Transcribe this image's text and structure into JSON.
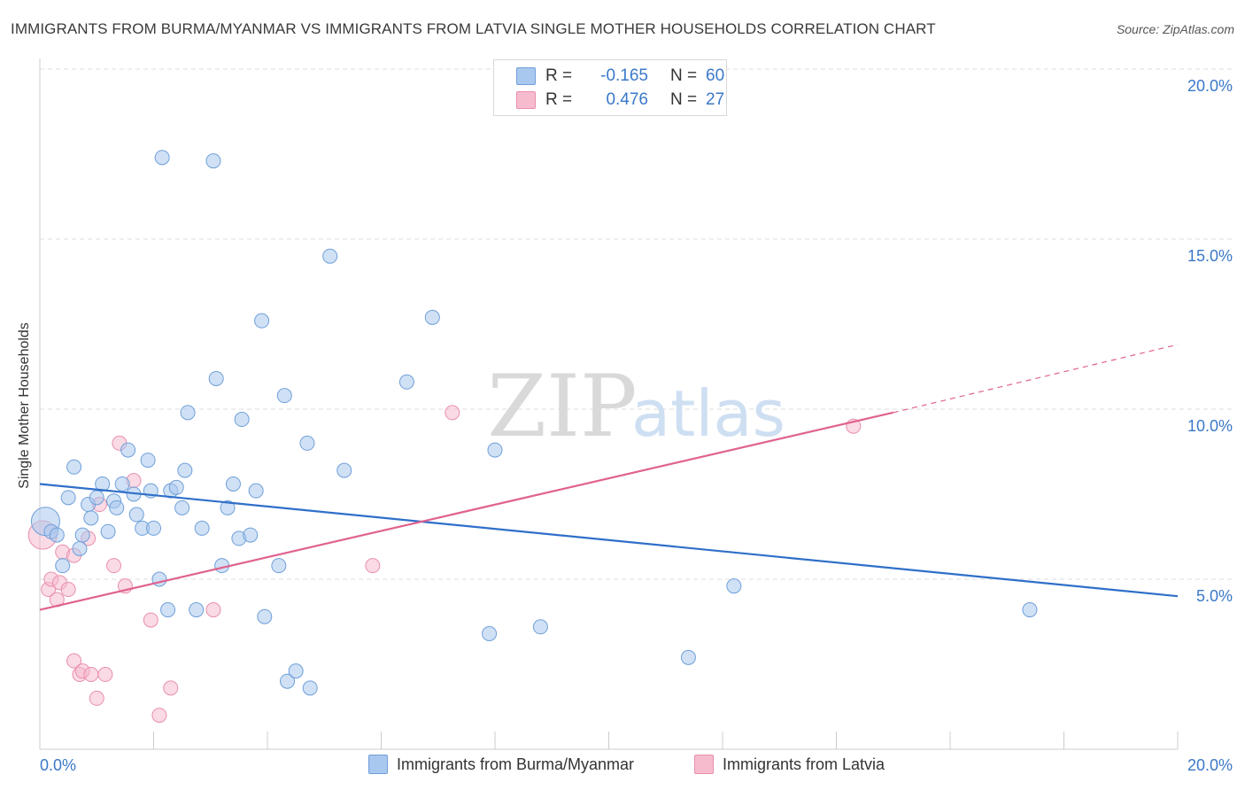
{
  "title": "IMMIGRANTS FROM BURMA/MYANMAR VS IMMIGRANTS FROM LATVIA SINGLE MOTHER HOUSEHOLDS CORRELATION CHART",
  "source": "Source: ZipAtlas.com",
  "watermark": {
    "zip": "ZIP",
    "atlas": "atlas"
  },
  "colors": {
    "burma_fill": "#a9c8ef",
    "burma_stroke": "#6f9fd8",
    "burma_line": "#2f6fc9",
    "latvia_fill": "#f6bccd",
    "latvia_stroke": "#e88fac",
    "latvia_line": "#e0628e",
    "axis_text": "#3a78c9",
    "grid": "#dddddd"
  },
  "legend_top": {
    "rows": [
      {
        "r_label": "R =",
        "r_value": "-0.165",
        "n_label": "N =",
        "n_value": "60"
      },
      {
        "r_label": "R =",
        "r_value": "0.476",
        "n_label": "N =",
        "n_value": "27"
      }
    ]
  },
  "legend_bottom": {
    "series": [
      "Immigrants from Burma/Myanmar",
      "Immigrants from Latvia"
    ]
  },
  "chart_data": {
    "type": "scatter",
    "title": "IMMIGRANTS FROM BURMA/MYANMAR VS IMMIGRANTS FROM LATVIA SINGLE MOTHER HOUSEHOLDS CORRELATION CHART",
    "xlabel": "",
    "ylabel": "Single Mother Households",
    "xlim": [
      0,
      20
    ],
    "ylim": [
      0,
      20
    ],
    "x_tick_labels": [
      "0.0%",
      "20.0%"
    ],
    "y_ticks": [
      5,
      10,
      15,
      20
    ],
    "y_tick_labels": [
      "5.0%",
      "10.0%",
      "15.0%",
      "20.0%"
    ],
    "grid": true,
    "series": [
      {
        "name": "Immigrants from Burma/Myanmar",
        "r": -0.165,
        "n": 60,
        "trend": {
          "x": [
            0,
            20
          ],
          "y": [
            7.8,
            4.5
          ]
        },
        "points": [
          {
            "x": 0.1,
            "y": 6.7,
            "big": true
          },
          {
            "x": 0.2,
            "y": 6.4
          },
          {
            "x": 0.3,
            "y": 6.3
          },
          {
            "x": 0.4,
            "y": 5.4
          },
          {
            "x": 0.5,
            "y": 7.4
          },
          {
            "x": 0.6,
            "y": 8.3
          },
          {
            "x": 0.7,
            "y": 5.9
          },
          {
            "x": 0.75,
            "y": 6.3
          },
          {
            "x": 0.85,
            "y": 7.2
          },
          {
            "x": 0.9,
            "y": 6.8
          },
          {
            "x": 1.0,
            "y": 7.4
          },
          {
            "x": 1.1,
            "y": 7.8
          },
          {
            "x": 1.2,
            "y": 6.4
          },
          {
            "x": 1.3,
            "y": 7.3
          },
          {
            "x": 1.35,
            "y": 7.1
          },
          {
            "x": 1.45,
            "y": 7.8
          },
          {
            "x": 1.55,
            "y": 8.8
          },
          {
            "x": 1.65,
            "y": 7.5
          },
          {
            "x": 1.7,
            "y": 6.9
          },
          {
            "x": 1.8,
            "y": 6.5
          },
          {
            "x": 1.9,
            "y": 8.5
          },
          {
            "x": 1.95,
            "y": 7.6
          },
          {
            "x": 2.0,
            "y": 6.5
          },
          {
            "x": 2.1,
            "y": 5.0
          },
          {
            "x": 2.15,
            "y": 17.4
          },
          {
            "x": 2.25,
            "y": 4.1
          },
          {
            "x": 2.3,
            "y": 7.6
          },
          {
            "x": 2.4,
            "y": 7.7
          },
          {
            "x": 2.5,
            "y": 7.1
          },
          {
            "x": 2.55,
            "y": 8.2
          },
          {
            "x": 2.6,
            "y": 9.9
          },
          {
            "x": 2.75,
            "y": 4.1
          },
          {
            "x": 2.85,
            "y": 6.5
          },
          {
            "x": 3.05,
            "y": 17.3
          },
          {
            "x": 3.1,
            "y": 10.9
          },
          {
            "x": 3.2,
            "y": 5.4
          },
          {
            "x": 3.3,
            "y": 7.1
          },
          {
            "x": 3.4,
            "y": 7.8
          },
          {
            "x": 3.5,
            "y": 6.2
          },
          {
            "x": 3.55,
            "y": 9.7
          },
          {
            "x": 3.7,
            "y": 6.3
          },
          {
            "x": 3.8,
            "y": 7.6
          },
          {
            "x": 3.9,
            "y": 12.6
          },
          {
            "x": 3.95,
            "y": 3.9
          },
          {
            "x": 4.2,
            "y": 5.4
          },
          {
            "x": 4.3,
            "y": 10.4
          },
          {
            "x": 4.35,
            "y": 2.0
          },
          {
            "x": 4.5,
            "y": 2.3
          },
          {
            "x": 4.7,
            "y": 9.0
          },
          {
            "x": 4.75,
            "y": 1.8
          },
          {
            "x": 5.1,
            "y": 14.5
          },
          {
            "x": 5.35,
            "y": 8.2
          },
          {
            "x": 6.45,
            "y": 10.8
          },
          {
            "x": 6.9,
            "y": 12.7
          },
          {
            "x": 7.9,
            "y": 3.4
          },
          {
            "x": 8.0,
            "y": 8.8
          },
          {
            "x": 8.8,
            "y": 3.6
          },
          {
            "x": 11.4,
            "y": 2.7
          },
          {
            "x": 12.2,
            "y": 4.8
          },
          {
            "x": 17.4,
            "y": 4.1
          }
        ]
      },
      {
        "name": "Immigrants from Latvia",
        "r": 0.476,
        "n": 27,
        "trend": {
          "x": [
            0,
            15
          ],
          "y": [
            4.1,
            9.9
          ]
        },
        "trend_dashed": {
          "x": [
            15,
            20
          ],
          "y": [
            9.9,
            11.9
          ]
        },
        "points": [
          {
            "x": 0.05,
            "y": 6.3,
            "big": true
          },
          {
            "x": 0.15,
            "y": 4.7
          },
          {
            "x": 0.2,
            "y": 5.0
          },
          {
            "x": 0.3,
            "y": 4.4
          },
          {
            "x": 0.35,
            "y": 4.9
          },
          {
            "x": 0.4,
            "y": 5.8
          },
          {
            "x": 0.5,
            "y": 4.7
          },
          {
            "x": 0.6,
            "y": 5.7
          },
          {
            "x": 0.6,
            "y": 2.6
          },
          {
            "x": 0.7,
            "y": 2.2
          },
          {
            "x": 0.75,
            "y": 2.3
          },
          {
            "x": 0.85,
            "y": 6.2
          },
          {
            "x": 0.9,
            "y": 2.2
          },
          {
            "x": 1.0,
            "y": 1.5
          },
          {
            "x": 1.05,
            "y": 7.2
          },
          {
            "x": 1.15,
            "y": 2.2
          },
          {
            "x": 1.3,
            "y": 5.4
          },
          {
            "x": 1.4,
            "y": 9.0
          },
          {
            "x": 1.5,
            "y": 4.8
          },
          {
            "x": 1.65,
            "y": 7.9
          },
          {
            "x": 1.95,
            "y": 3.8
          },
          {
            "x": 2.1,
            "y": 1.0
          },
          {
            "x": 2.3,
            "y": 1.8
          },
          {
            "x": 3.05,
            "y": 4.1
          },
          {
            "x": 5.85,
            "y": 5.4
          },
          {
            "x": 7.25,
            "y": 9.9
          },
          {
            "x": 14.3,
            "y": 9.5
          }
        ]
      }
    ]
  }
}
